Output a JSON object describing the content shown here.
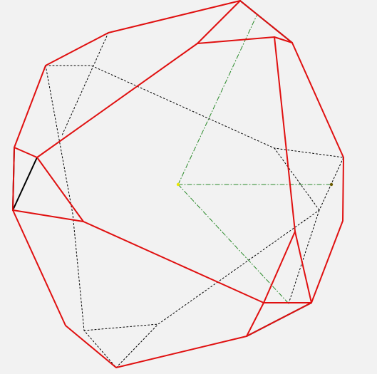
{
  "diagram": {
    "type": "polyhedron-wireframe",
    "colors": {
      "background": "#f2f2f2",
      "outline_edges": "#e01010",
      "highlighted_edges": "#000000",
      "hidden_edges": "#000000",
      "axis_lines": "#2a8a2a",
      "center_point": "#e8e800",
      "marker_point": "#6a5a00"
    },
    "line_styles": {
      "outline_edges": "solid",
      "highlighted_edges": "solid",
      "hidden_edges": "dotted",
      "axis_lines": "dash-dot"
    }
  }
}
